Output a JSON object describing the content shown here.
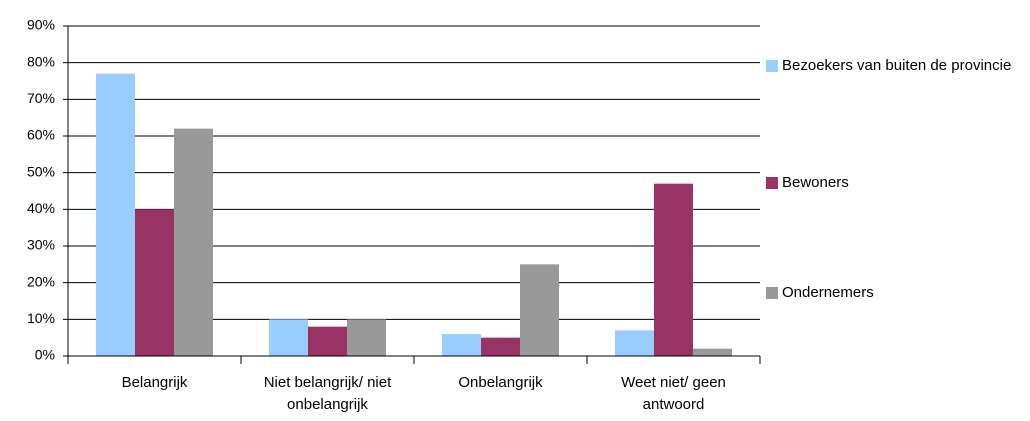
{
  "chart_data": {
    "type": "bar",
    "categories": [
      "Belangrijk",
      "Niet belangrijk/ niet onbelangrijk",
      "Onbelangrijk",
      "Weet niet/ geen antwoord"
    ],
    "series": [
      {
        "name": "Bezoekers van buiten de provincie",
        "color": "#99ccff",
        "values": [
          77,
          10,
          6,
          7
        ]
      },
      {
        "name": "Bewoners",
        "color": "#993366",
        "values": [
          40,
          8,
          5,
          47
        ]
      },
      {
        "name": "Ondernemers",
        "color": "#999999",
        "values": [
          62,
          10,
          25,
          2
        ]
      }
    ],
    "ylim": [
      0,
      90
    ],
    "yticks": [
      {
        "value": 0,
        "label": "0%"
      },
      {
        "value": 10,
        "label": "10%"
      },
      {
        "value": 20,
        "label": "20%"
      },
      {
        "value": 30,
        "label": "30%"
      },
      {
        "value": 40,
        "label": "40%"
      },
      {
        "value": 50,
        "label": "50%"
      },
      {
        "value": 60,
        "label": "60%"
      },
      {
        "value": 70,
        "label": "70%"
      },
      {
        "value": 80,
        "label": "80%"
      },
      {
        "value": 90,
        "label": "90%"
      }
    ],
    "grid": true,
    "legend": "right"
  }
}
